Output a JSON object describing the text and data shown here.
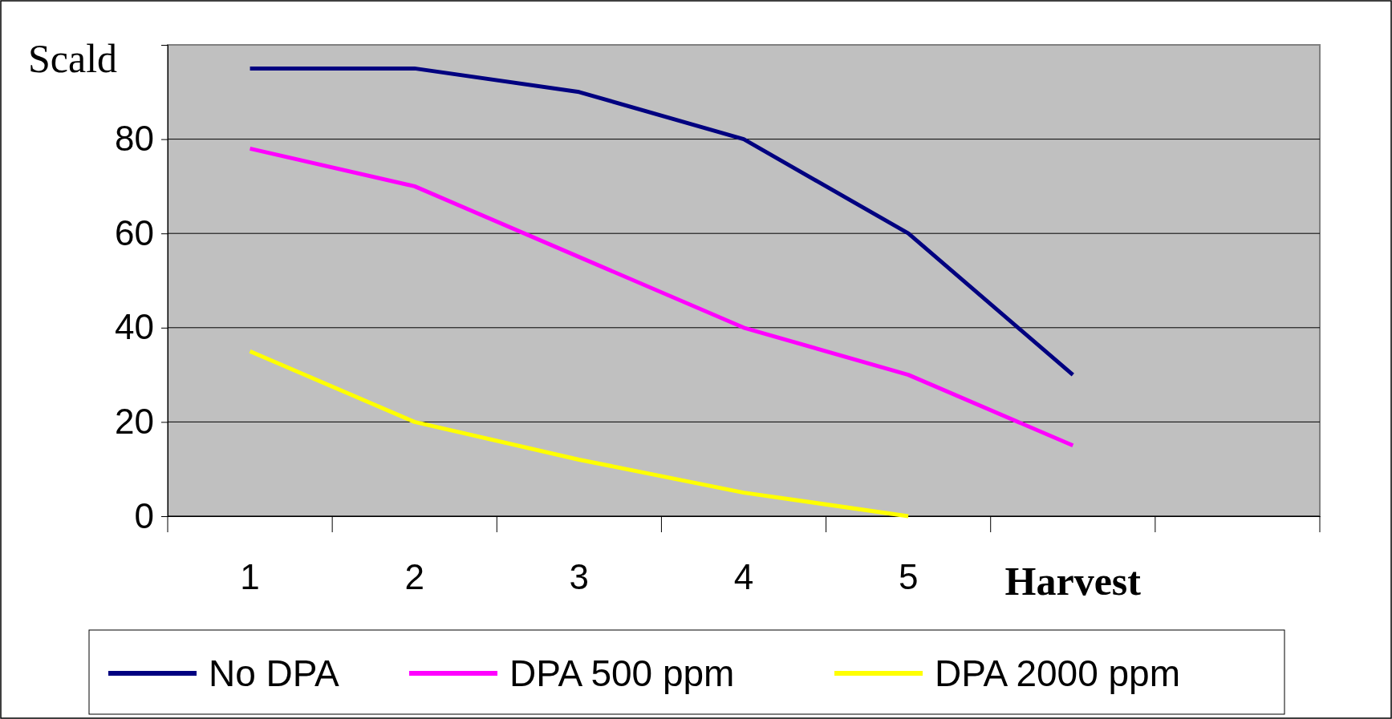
{
  "chart_data": {
    "type": "line",
    "categories": [
      "1",
      "2",
      "3",
      "4",
      "5",
      null,
      null
    ],
    "ylabel": "Scald",
    "xlabel": "Harvest",
    "ylim": [
      0,
      100
    ],
    "yticks": [
      0,
      20,
      40,
      60,
      80
    ],
    "grid": "y",
    "legend": "bottom",
    "marker": "none",
    "series": [
      {
        "name": "No DPA",
        "color": "#000080",
        "values": [
          95,
          95,
          90,
          80,
          60,
          30,
          null
        ]
      },
      {
        "name": "DPA 500 ppm",
        "color": "#ff00ff",
        "values": [
          78,
          70,
          55,
          40,
          30,
          15,
          null
        ]
      },
      {
        "name": "DPA 2000 ppm",
        "color": "#ffff00",
        "values": [
          35,
          20,
          12,
          5,
          0,
          null,
          null
        ]
      }
    ]
  }
}
